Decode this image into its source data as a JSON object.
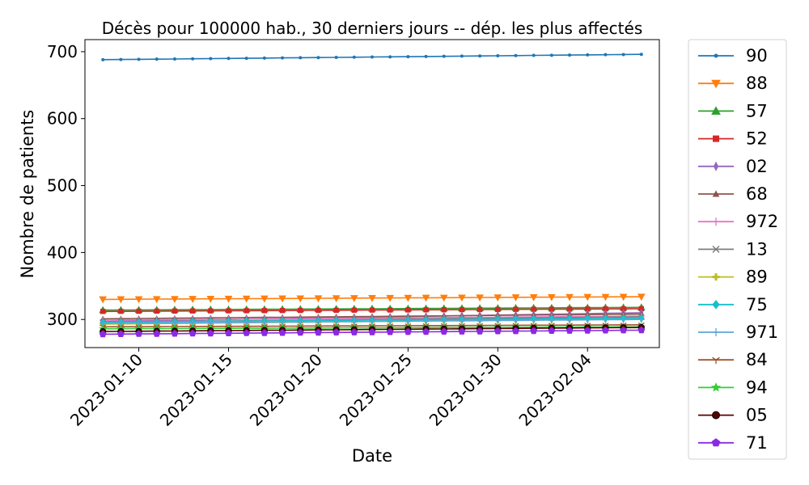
{
  "chart_data": {
    "type": "line",
    "title": "Décès pour 100000 hab., 30 derniers jours -- dép. les plus affectés",
    "xlabel": "Date",
    "ylabel": "Nombre de patients",
    "x_range": [
      "2023-01-07",
      "2023-02-08"
    ],
    "ylim": [
      258,
      718
    ],
    "x_ticks": [
      "2023-01-10",
      "2023-01-15",
      "2023-01-20",
      "2023-01-25",
      "2023-01-30",
      "2023-02-04"
    ],
    "y_ticks": [
      300,
      400,
      500,
      600,
      700
    ],
    "grid": false,
    "legend_position": "outside-right",
    "x": [
      "2023-01-08",
      "2023-01-09",
      "2023-01-10",
      "2023-01-11",
      "2023-01-12",
      "2023-01-13",
      "2023-01-14",
      "2023-01-15",
      "2023-01-16",
      "2023-01-17",
      "2023-01-18",
      "2023-01-19",
      "2023-01-20",
      "2023-01-21",
      "2023-01-22",
      "2023-01-23",
      "2023-01-24",
      "2023-01-25",
      "2023-01-26",
      "2023-01-27",
      "2023-01-28",
      "2023-01-29",
      "2023-01-30",
      "2023-01-31",
      "2023-02-01",
      "2023-02-02",
      "2023-02-03",
      "2023-02-04",
      "2023-02-05",
      "2023-02-06",
      "2023-02-07"
    ],
    "series": [
      {
        "name": "90",
        "color": "#1f77b4",
        "marker": "point",
        "start": 688,
        "end": 696
      },
      {
        "name": "88",
        "color": "#ff7f0e",
        "marker": "triangle-down",
        "start": 330,
        "end": 334
      },
      {
        "name": "57",
        "color": "#2ca02c",
        "marker": "triangle-up",
        "start": 314,
        "end": 318
      },
      {
        "name": "52",
        "color": "#d62728",
        "marker": "square",
        "start": 312,
        "end": 316
      },
      {
        "name": "02",
        "color": "#9467bd",
        "marker": "thin-diamond",
        "start": 297,
        "end": 310
      },
      {
        "name": "68",
        "color": "#8c564b",
        "marker": "small-triangle",
        "start": 301,
        "end": 308
      },
      {
        "name": "972",
        "color": "#e377c2",
        "marker": "plus",
        "start": 299,
        "end": 305
      },
      {
        "name": "13",
        "color": "#7f7f7f",
        "marker": "x",
        "start": 296,
        "end": 304
      },
      {
        "name": "89",
        "color": "#bcbd22",
        "marker": "plus-filled",
        "start": 293,
        "end": 301
      },
      {
        "name": "75",
        "color": "#17becf",
        "marker": "diamond",
        "start": 296,
        "end": 302
      },
      {
        "name": "971",
        "color": "#5da5da",
        "marker": "plus",
        "start": 294,
        "end": 300
      },
      {
        "name": "84",
        "color": "#a0522d",
        "marker": "tri",
        "start": 289,
        "end": 292
      },
      {
        "name": "94",
        "color": "#32cd32",
        "marker": "star",
        "start": 286,
        "end": 289
      },
      {
        "name": "05",
        "color": "#5b0000",
        "marker": "circle",
        "start": 282,
        "end": 288
      },
      {
        "name": "71",
        "color": "#8a2be2",
        "marker": "pentagon",
        "start": 278,
        "end": 284
      }
    ]
  }
}
